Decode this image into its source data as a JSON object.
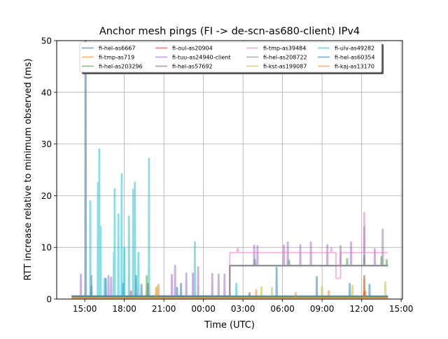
{
  "chart_data": {
    "type": "line",
    "title": "Anchor mesh pings (FI -> de-scn-as680-client) IPv4",
    "xlabel": "Time (UTC)",
    "ylabel": "RTT increase relative to minimum observed (ms)",
    "xlim_hours": [
      12.87,
      39.1
    ],
    "ylim": [
      0,
      50
    ],
    "grid": true,
    "legend_position": "top-center",
    "x_ticks": [
      {
        "hour": 15,
        "label": "15:00"
      },
      {
        "hour": 18,
        "label": "18:00"
      },
      {
        "hour": 21,
        "label": "21:00"
      },
      {
        "hour": 24,
        "label": "00:00"
      },
      {
        "hour": 27,
        "label": "03:00"
      },
      {
        "hour": 30,
        "label": "06:00"
      },
      {
        "hour": 33,
        "label": "09:00"
      },
      {
        "hour": 36,
        "label": "12:00"
      },
      {
        "hour": 39,
        "label": "15:00"
      }
    ],
    "y_ticks": [
      0,
      10,
      20,
      30,
      40,
      50
    ],
    "series": [
      {
        "name": "fi-hel-as6667",
        "color": "#1f77b4",
        "base": [
          [
            14.0,
            38.0,
            0.6
          ]
        ],
        "spikes": [
          [
            15.07,
            52
          ],
          [
            15.5,
            2.5
          ],
          [
            17.9,
            3
          ],
          [
            19.3,
            2.8
          ],
          [
            22.0,
            2.2
          ]
        ]
      },
      {
        "name": "fi-tmp-as719",
        "color": "#ff7f0e",
        "base": [
          [
            14.0,
            38.0,
            0.3
          ]
        ],
        "spikes": [
          [
            20.6,
            2.8
          ],
          [
            28.0,
            1.8
          ],
          [
            33.5,
            1.6
          ],
          [
            36.3,
            1.5
          ]
        ]
      },
      {
        "name": "fi-hel-as203296",
        "color": "#2ca02c",
        "base": [
          [
            14.0,
            26.0,
            0.5
          ],
          [
            26.0,
            38.0,
            6.5
          ]
        ],
        "spikes": [
          [
            19.7,
            4.5
          ],
          [
            27.9,
            7.6
          ],
          [
            30.5,
            7.5
          ],
          [
            34.9,
            7.8
          ],
          [
            37.5,
            8.2
          ],
          [
            37.9,
            7.6
          ]
        ]
      },
      {
        "name": "fi-oul-as20904",
        "color": "#d62728",
        "base": [
          [
            14.0,
            38.0,
            0.4
          ]
        ],
        "spikes": [
          [
            18.5,
            1.5
          ],
          [
            27.5,
            1.2
          ],
          [
            36.2,
            1.4
          ]
        ]
      },
      {
        "name": "fi-tuu-as24940-client",
        "color": "#9467bd",
        "base": [
          [
            14.0,
            26.0,
            0.6
          ],
          [
            26.0,
            38.0,
            6.5
          ]
        ],
        "spikes": [
          [
            14.7,
            4.8
          ],
          [
            15.5,
            4.5
          ],
          [
            16.8,
            4.5
          ],
          [
            17.0,
            4.2
          ],
          [
            21.6,
            4.7
          ],
          [
            21.85,
            6.5
          ],
          [
            22.7,
            5.0
          ],
          [
            23.2,
            5.0
          ],
          [
            23.6,
            6.2
          ],
          [
            24.67,
            4.9
          ],
          [
            25.15,
            4.8
          ],
          [
            25.6,
            4.8
          ],
          [
            27.85,
            10.4
          ],
          [
            28.1,
            10.3
          ],
          [
            30.1,
            10.4
          ],
          [
            30.4,
            11.0
          ],
          [
            31.35,
            10.5
          ],
          [
            32.15,
            11.0
          ],
          [
            33.4,
            10.5
          ],
          [
            34.4,
            10.3
          ],
          [
            35.2,
            11.0
          ],
          [
            36.2,
            14.0
          ],
          [
            37.0,
            9.7
          ],
          [
            37.6,
            13.5
          ]
        ]
      },
      {
        "name": "fi-hel-as57692",
        "color": "#8c564b",
        "base": [
          [
            14.0,
            38.0,
            0.4
          ]
        ],
        "spikes": [
          [
            36.2,
            4.5
          ],
          [
            19.8,
            3.0
          ]
        ]
      },
      {
        "name": "fi-tmp-as39484",
        "color": "#e377c2",
        "base": [
          [
            14.0,
            26.0,
            0.5
          ],
          [
            26.0,
            34.05,
            9.0
          ],
          [
            34.05,
            34.4,
            4.0
          ],
          [
            34.4,
            38.0,
            9.0
          ]
        ],
        "spikes": [
          [
            26.6,
            9.8
          ],
          [
            33.7,
            10.0
          ],
          [
            36.2,
            16.7
          ]
        ]
      },
      {
        "name": "fi-hel-as208722",
        "color": "#7f7f7f",
        "base": [
          [
            14.0,
            26.0,
            0.5
          ],
          [
            26.0,
            38.0,
            6.4
          ]
        ],
        "spikes": [
          [
            36.2,
            8.5
          ]
        ]
      },
      {
        "name": "fi-kst-as199087",
        "color": "#bcbd22",
        "base": [
          [
            14.0,
            38.0,
            0.4
          ]
        ],
        "spikes": [
          [
            20.5,
            2.5
          ],
          [
            28.4,
            2.3
          ],
          [
            29.2,
            2.2
          ],
          [
            33.0,
            2.4
          ],
          [
            35.3,
            2.6
          ],
          [
            37.8,
            3.3
          ]
        ]
      },
      {
        "name": "fi-ulv-as49282",
        "color": "#17becf",
        "base": [
          [
            14.0,
            38.0,
            0.5
          ]
        ],
        "spikes": [
          [
            15.42,
            19.0
          ],
          [
            16.0,
            22.5
          ],
          [
            16.1,
            29.0
          ],
          [
            16.2,
            14.0
          ],
          [
            16.5,
            4.0
          ],
          [
            17.2,
            9.0
          ],
          [
            17.27,
            21.3
          ],
          [
            17.55,
            16.4
          ],
          [
            17.8,
            24.2
          ],
          [
            18.0,
            10.0
          ],
          [
            18.35,
            16.0
          ],
          [
            18.67,
            21.2
          ],
          [
            18.8,
            22.6
          ],
          [
            19.07,
            9.0
          ],
          [
            19.87,
            27.2
          ],
          [
            23.35,
            11.0
          ],
          [
            26.5,
            3.0
          ]
        ]
      },
      {
        "name": "fi-hel-as60354",
        "color": "#1f77b4",
        "base": [
          [
            14.0,
            38.0,
            0.5
          ]
        ],
        "spikes": [
          [
            16.6,
            4.0
          ],
          [
            18.9,
            4.5
          ],
          [
            22.3,
            3.0
          ],
          [
            29.55,
            6.1
          ],
          [
            32.6,
            4.3
          ],
          [
            35.1,
            3.0
          ],
          [
            36.6,
            2.8
          ]
        ]
      },
      {
        "name": "fi-kaj-as13170",
        "color": "#ff7f0e",
        "base": [
          [
            14.0,
            38.0,
            0.2
          ]
        ],
        "spikes": [
          [
            20.4,
            2.2
          ],
          [
            31.0,
            1.2
          ],
          [
            36.2,
            3.8
          ]
        ]
      }
    ]
  }
}
